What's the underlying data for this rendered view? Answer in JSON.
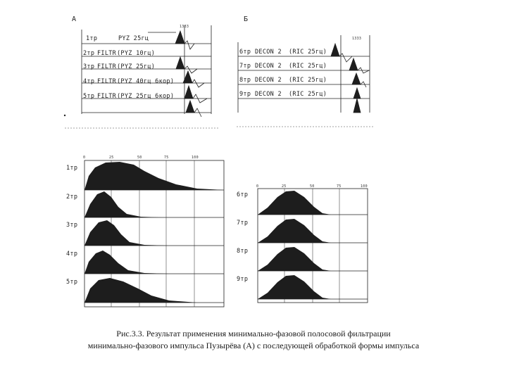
{
  "panel_a": {
    "letter": "A",
    "marker": "1333",
    "traces": [
      {
        "trace": "1тр",
        "filter": "",
        "param": "PYZ 25гц"
      },
      {
        "trace": "2тр",
        "filter": "FILTR",
        "param": "(PYZ 10гц)"
      },
      {
        "trace": "3тр",
        "filter": "FILTR",
        "param": "(PYZ 25гц)"
      },
      {
        "trace": "4тр",
        "filter": "FILTR",
        "param": "(PYZ 40гц 6кор)"
      },
      {
        "trace": "5тр",
        "filter": "FILTR",
        "param": "(PYZ 25гц 6кор)"
      }
    ]
  },
  "panel_b": {
    "letter": "Б",
    "marker": "1333",
    "traces": [
      {
        "trace": "6тр",
        "filter": "DECON 2",
        "param": "(RIC 25гц)"
      },
      {
        "trace": "7тр",
        "filter": "DECON 2",
        "param": "(RIC 25гц)"
      },
      {
        "trace": "8тр",
        "filter": "DECON 2",
        "param": "(RIC 25гц)"
      },
      {
        "trace": "9тр",
        "filter": "DECON 2",
        "param": "(RIC 25гц)"
      }
    ]
  },
  "spectra_a": {
    "ticks": [
      "0",
      "25",
      "50",
      "75",
      "100"
    ],
    "labels": [
      "1тр",
      "2тр",
      "3тр",
      "4тр",
      "5тр"
    ]
  },
  "spectra_b": {
    "ticks": [
      "0",
      "25",
      "50",
      "75",
      "100"
    ],
    "labels": [
      "6тр",
      "7тр",
      "8тр",
      "9тр"
    ]
  },
  "caption": {
    "line1": "Рис.3.3. Результат применения минимально-фазовой полосовой фильтрации",
    "line2": "минимально-фазового импульса Пузырёва (А) с последующей обработкой формы импульса"
  }
}
